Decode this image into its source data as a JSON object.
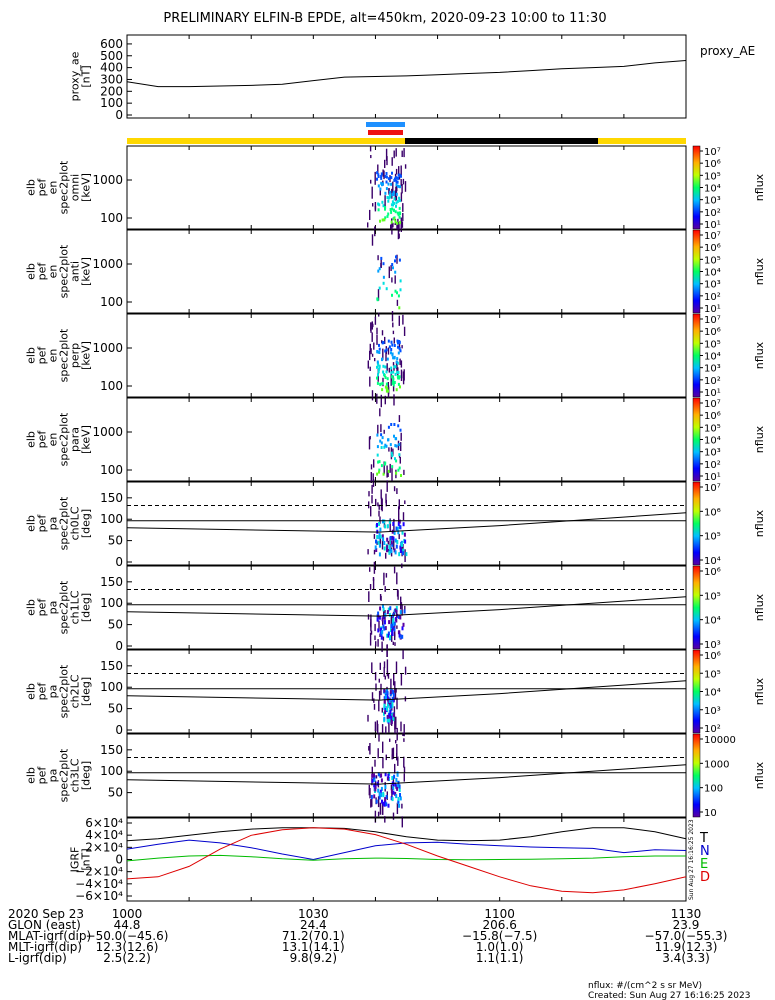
{
  "title": "PRELIMINARY ELFIN-B EPDE, alt=450km, 2020-09-23 10:00 to 11:30",
  "chart_data": [
    {
      "type": "line",
      "panel": "proxy_ae",
      "ylabel": "proxy_ae\n[nT]",
      "legend": "proxy_AE",
      "yticks": [
        "600",
        "500",
        "400",
        "300",
        "200",
        "100",
        "0"
      ],
      "ylim": [
        0,
        650
      ],
      "x_minutes": [
        0,
        5,
        10,
        15,
        20,
        25,
        30,
        35,
        40,
        45,
        50,
        55,
        60,
        65,
        70,
        75,
        80,
        85,
        90
      ],
      "values": [
        280,
        240,
        240,
        245,
        250,
        260,
        290,
        320,
        325,
        330,
        340,
        350,
        360,
        375,
        390,
        400,
        410,
        440,
        460
      ]
    },
    {
      "type": "heatmap",
      "panel": "omni",
      "ylabel": "elb\npef\nen\nspec2plot\nomni\n[keV]",
      "yticks": [
        "1000",
        "100"
      ],
      "colorbar_ticks": [
        "10⁷",
        "10⁶",
        "10⁵",
        "10⁴",
        "10³",
        "10²",
        "10¹"
      ],
      "colorbar_label": "nflux"
    },
    {
      "type": "heatmap",
      "panel": "anti",
      "ylabel": "elb\npef\nen\nspec2plot\nanti\n[keV]",
      "yticks": [
        "1000",
        "100"
      ],
      "colorbar_ticks": [
        "10⁷",
        "10⁶",
        "10⁵",
        "10⁴",
        "10³",
        "10²",
        "10¹"
      ],
      "colorbar_label": "nflux"
    },
    {
      "type": "heatmap",
      "panel": "perp",
      "ylabel": "elb\npef\nen\nspec2plot\nperp\n[keV]",
      "yticks": [
        "1000",
        "100"
      ],
      "colorbar_ticks": [
        "10⁷",
        "10⁶",
        "10⁵",
        "10⁴",
        "10³",
        "10²",
        "10¹"
      ],
      "colorbar_label": "nflux"
    },
    {
      "type": "heatmap",
      "panel": "para",
      "ylabel": "elb\npef\nen\nspec2plot\npara\n[keV]",
      "yticks": [
        "1000",
        "100"
      ],
      "colorbar_ticks": [
        "10⁷",
        "10⁶",
        "10⁵",
        "10⁴",
        "10³",
        "10²",
        "10¹"
      ],
      "colorbar_label": "nflux"
    },
    {
      "type": "heatmap",
      "panel": "ch0LC",
      "ylabel": "elb\npef\npa\nspec2plot\nch0LC\n[deg]",
      "yticks": [
        "150",
        "100",
        "50",
        "0"
      ],
      "colorbar_ticks": [
        "10⁷",
        "10⁶",
        "10⁵",
        "10⁴"
      ],
      "colorbar_label": "nflux"
    },
    {
      "type": "heatmap",
      "panel": "ch1LC",
      "ylabel": "elb\npef\npa\nspec2plot\nch1LC\n[deg]",
      "yticks": [
        "150",
        "100",
        "50",
        "0"
      ],
      "colorbar_ticks": [
        "10⁶",
        "10⁵",
        "10⁴",
        "10³"
      ],
      "colorbar_label": "nflux"
    },
    {
      "type": "heatmap",
      "panel": "ch2LC",
      "ylabel": "elb\npef\npa\nspec2plot\nch2LC\n[deg]",
      "yticks": [
        "150",
        "100",
        "50",
        "0"
      ],
      "colorbar_ticks": [
        "10⁶",
        "10⁵",
        "10⁴",
        "10³",
        "10²"
      ],
      "colorbar_label": "nflux"
    },
    {
      "type": "heatmap",
      "panel": "ch3LC",
      "ylabel": "elb\npef\npa\nspec2plot\nch3LC\n[deg]",
      "yticks": [
        "150",
        "100",
        "50"
      ],
      "colorbar_ticks": [
        "10000",
        "1000",
        "100",
        "10"
      ],
      "colorbar_label": "nflux"
    },
    {
      "type": "line",
      "panel": "igrf",
      "ylabel": "IGRF\n[nT]",
      "yticks": [
        "6×10⁴",
        "4×10⁴",
        "2×10⁴",
        "0",
        "−2×10⁴",
        "−4×10⁴",
        "−6×10⁴"
      ],
      "ylim": [
        -60000,
        60000
      ],
      "legend": [
        "T",
        "N",
        "E",
        "D"
      ],
      "x_minutes": [
        0,
        5,
        10,
        15,
        20,
        25,
        30,
        35,
        40,
        45,
        50,
        55,
        60,
        65,
        70,
        75,
        80,
        85,
        90
      ],
      "series": [
        {
          "name": "T",
          "color": "#000000",
          "values": [
            27000,
            30000,
            35000,
            40000,
            44000,
            46000,
            46000,
            45000,
            40000,
            33000,
            28000,
            27000,
            28000,
            33000,
            40000,
            46000,
            46000,
            40000,
            30000
          ]
        },
        {
          "name": "N",
          "color": "#0000cc",
          "values": [
            15000,
            22000,
            28000,
            24000,
            17000,
            8000,
            0,
            10000,
            20000,
            24000,
            25000,
            22000,
            20000,
            18000,
            17000,
            16000,
            10000,
            14000,
            13000
          ]
        },
        {
          "name": "E",
          "color": "#00bb00",
          "values": [
            -2000,
            2000,
            5000,
            6000,
            4000,
            1000,
            -1000,
            1000,
            2000,
            1500,
            0,
            -500,
            0,
            500,
            1000,
            2000,
            4000,
            5000,
            5000
          ]
        },
        {
          "name": "D",
          "color": "#dd0000",
          "values": [
            -28000,
            -25000,
            -10000,
            15000,
            35000,
            43000,
            46000,
            44000,
            36000,
            22000,
            5000,
            -10000,
            -25000,
            -38000,
            -46000,
            -48000,
            -44000,
            -35000,
            -25000
          ]
        }
      ]
    }
  ],
  "xaxis": {
    "tick_labels": [
      "1000",
      "1030",
      "1100",
      "1130"
    ],
    "rows": [
      {
        "label": "2020 Sep 23",
        "values": [
          "1000",
          "1030",
          "1100",
          "1130"
        ]
      },
      {
        "label": "GLON (east)",
        "values": [
          "44.8",
          "24.4",
          "206.6",
          "23.9"
        ]
      },
      {
        "label": "MLAT-igrf(dip)",
        "values": [
          "−50.0(−45.6)",
          "71.2(70.1)",
          "−15.8(−7.5)",
          "−57.0(−55.3)"
        ]
      },
      {
        "label": "MLT-igrf(dip)",
        "values": [
          "12.3(12.6)",
          "13.1(14.1)",
          "1.0(1.0)",
          "11.9(12.3)"
        ]
      },
      {
        "label": "L-igrf(dip)",
        "values": [
          "2.5(2.2)",
          "9.8(9.2)",
          "1.1(1.1)",
          "3.4(3.3)"
        ]
      }
    ]
  },
  "footer": {
    "units": "nflux: #/(cm^2 s sr MeV)",
    "created": "Created: Sun Aug 27 16:16:25 2023",
    "side_stamp": "Sun Aug 27 16:16:25 2023"
  }
}
